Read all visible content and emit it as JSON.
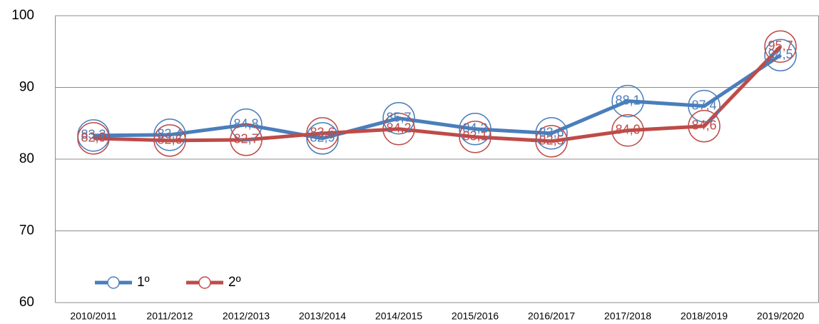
{
  "chart_data": {
    "type": "line",
    "categories": [
      "2010/2011",
      "2011/2012",
      "2012/2013",
      "2013/2014",
      "2014/2015",
      "2015/2016",
      "2016/2017",
      "2017/2018",
      "2018/2019",
      "2019/2020"
    ],
    "series": [
      {
        "name": "1º",
        "color": "#4a7ebb",
        "values": [
          83.3,
          83.4,
          84.8,
          82.9,
          85.7,
          84.2,
          83.6,
          88.1,
          87.4,
          94.5
        ],
        "value_labels": [
          "83,3",
          "83,4",
          "84,8",
          "82,9",
          "85,7",
          "84,2",
          "83,6",
          "88,1",
          "87,4",
          "94,5"
        ]
      },
      {
        "name": "2º",
        "color": "#be4b48",
        "values": [
          82.9,
          82.6,
          82.7,
          83.6,
          84.2,
          83.1,
          82.5,
          84.0,
          84.6,
          95.7
        ],
        "value_labels": [
          "82,9",
          "82,6",
          "82,7",
          "83,6",
          "84,2",
          "83,1",
          "82,5",
          "84,0",
          "84,6",
          "95,7"
        ]
      }
    ],
    "ylim": [
      60,
      100
    ],
    "yticks": [
      60,
      70,
      80,
      90,
      100
    ],
    "grid": true,
    "legend": "lower left"
  }
}
